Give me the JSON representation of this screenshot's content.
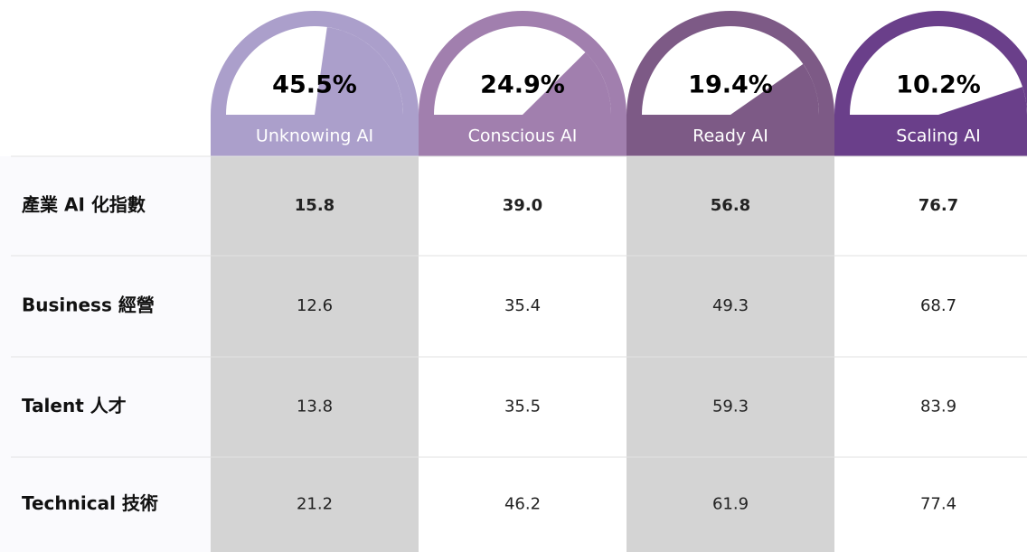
{
  "columns": [
    {
      "name": "Unknowing AI",
      "value": 45.5,
      "value_label": "45.5%",
      "color": "#ab9fcb"
    },
    {
      "name": "Conscious AI",
      "value": 24.9,
      "value_label": "24.9%",
      "color": "#a17fae"
    },
    {
      "name": "Ready AI",
      "value": 19.4,
      "value_label": "19.4%",
      "color": "#7d5a86"
    },
    {
      "name": "Scaling AI",
      "value": 10.2,
      "value_label": "10.2%",
      "color": "#6a3f8a"
    }
  ],
  "rows": [
    {
      "label": "產業 AI 化指數",
      "values": [
        "15.8",
        "39.0",
        "56.8",
        "76.7"
      ]
    },
    {
      "label": "Business 經營",
      "values": [
        "12.6",
        "35.4",
        "49.3",
        "68.7"
      ]
    },
    {
      "label": "Talent 人才",
      "values": [
        "13.8",
        "35.5",
        "59.3",
        "83.9"
      ]
    },
    {
      "label": "Technical 技術",
      "values": [
        "21.2",
        "46.2",
        "61.9",
        "77.4"
      ]
    }
  ]
}
